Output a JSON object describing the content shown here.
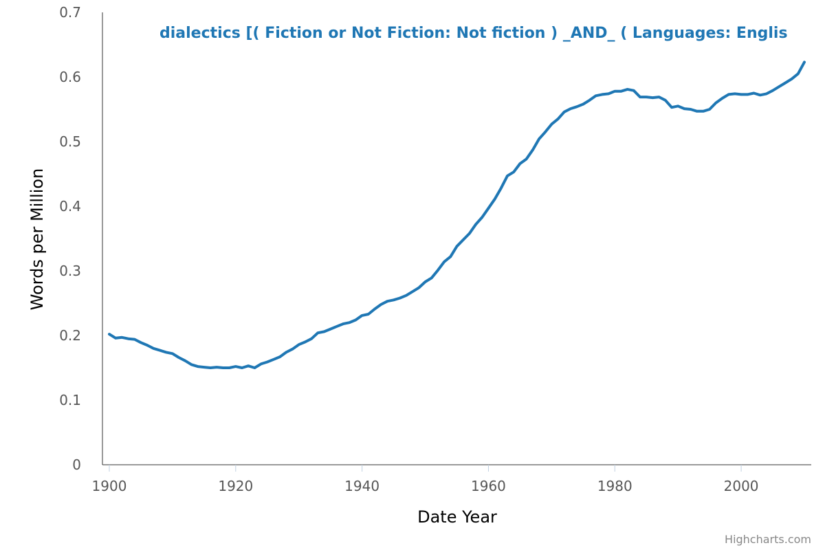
{
  "chart_data": {
    "type": "line",
    "title": "",
    "xlabel": "Date Year",
    "ylabel": "Words per Million",
    "xlim": [
      1900,
      2010
    ],
    "ylim": [
      0,
      0.7
    ],
    "x_ticks": [
      "1900",
      "1920",
      "1940",
      "1960",
      "1980",
      "2000"
    ],
    "y_ticks": [
      "0",
      "0.1",
      "0.2",
      "0.3",
      "0.4",
      "0.5",
      "0.6",
      "0.7"
    ],
    "grid": false,
    "legend": "none",
    "series_label": "dialectics [( Fiction or Not Fiction: Not fiction ) _AND_ ( Languages: Englis",
    "credits": "Highcharts.com",
    "series": [
      {
        "color": "#1f77b4",
        "x": [
          1900,
          1901,
          1902,
          1903,
          1904,
          1905,
          1906,
          1907,
          1908,
          1909,
          1910,
          1911,
          1912,
          1913,
          1914,
          1915,
          1916,
          1917,
          1918,
          1919,
          1920,
          1921,
          1922,
          1923,
          1924,
          1925,
          1926,
          1927,
          1928,
          1929,
          1930,
          1931,
          1932,
          1933,
          1934,
          1935,
          1936,
          1937,
          1938,
          1939,
          1940,
          1941,
          1942,
          1943,
          1944,
          1945,
          1946,
          1947,
          1948,
          1949,
          1950,
          1951,
          1952,
          1953,
          1954,
          1955,
          1956,
          1957,
          1958,
          1959,
          1960,
          1961,
          1962,
          1963,
          1964,
          1965,
          1966,
          1967,
          1968,
          1969,
          1970,
          1971,
          1972,
          1973,
          1974,
          1975,
          1976,
          1977,
          1978,
          1979,
          1980,
          1981,
          1982,
          1983,
          1984,
          1985,
          1986,
          1987,
          1988,
          1989,
          1990,
          1991,
          1992,
          1993,
          1994,
          1995,
          1996,
          1997,
          1998,
          1999,
          2000,
          2001,
          2002,
          2003,
          2004,
          2005,
          2006,
          2007,
          2008,
          2009,
          2010
        ],
        "values": [
          0.202,
          0.196,
          0.197,
          0.195,
          0.194,
          0.189,
          0.185,
          0.18,
          0.177,
          0.174,
          0.172,
          0.166,
          0.161,
          0.155,
          0.152,
          0.151,
          0.15,
          0.151,
          0.15,
          0.15,
          0.152,
          0.15,
          0.153,
          0.15,
          0.156,
          0.159,
          0.163,
          0.167,
          0.174,
          0.179,
          0.186,
          0.19,
          0.195,
          0.204,
          0.206,
          0.21,
          0.214,
          0.218,
          0.22,
          0.224,
          0.231,
          0.233,
          0.241,
          0.248,
          0.253,
          0.255,
          0.258,
          0.262,
          0.268,
          0.274,
          0.283,
          0.289,
          0.301,
          0.314,
          0.322,
          0.338,
          0.348,
          0.358,
          0.372,
          0.383,
          0.397,
          0.411,
          0.428,
          0.447,
          0.453,
          0.466,
          0.473,
          0.487,
          0.504,
          0.515,
          0.527,
          0.535,
          0.546,
          0.551,
          0.554,
          0.558,
          0.564,
          0.571,
          0.573,
          0.574,
          0.578,
          0.578,
          0.581,
          0.579,
          0.569,
          0.569,
          0.568,
          0.569,
          0.564,
          0.553,
          0.555,
          0.551,
          0.55,
          0.547,
          0.547,
          0.55,
          0.56,
          0.567,
          0.573,
          0.574,
          0.573,
          0.573,
          0.575,
          0.572,
          0.574,
          0.579,
          0.585,
          0.591,
          0.597,
          0.605,
          0.623
        ]
      }
    ]
  }
}
